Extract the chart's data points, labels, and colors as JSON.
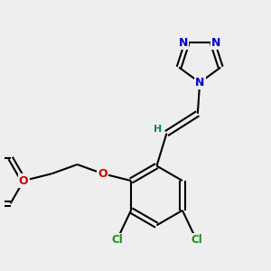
{
  "bg_color": "#eeeeee",
  "bond_color": "#000000",
  "N_color": "#0000cc",
  "O_color": "#cc0000",
  "Cl_color": "#228B22",
  "H_color": "#008080",
  "line_width": 1.5,
  "figsize": [
    3.0,
    3.0
  ],
  "dpi": 100,
  "xlim": [
    -0.5,
    3.2
  ],
  "ylim": [
    -0.9,
    2.9
  ]
}
